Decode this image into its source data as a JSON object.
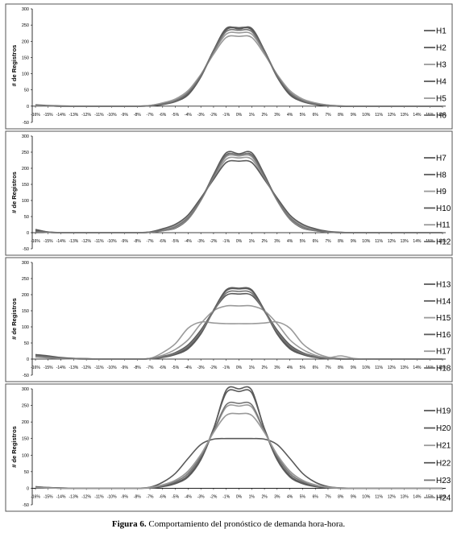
{
  "figure_caption": {
    "label": "Figura 6.",
    "text": "Comportamiento del pronóstico de  demanda  hora-hora."
  },
  "colors": {
    "dark": "#5a5a5a",
    "mid": "#757575",
    "light": "#9a9a9a",
    "axis": "#000000",
    "frame": "#555555"
  },
  "chart_data": [
    {
      "type": "line",
      "ylabel": "# de Registros",
      "ylim": [
        -50,
        300
      ],
      "yticks": [
        -50,
        0,
        50,
        100,
        150,
        200,
        250,
        300
      ],
      "categories": [
        "-16%",
        "-15%",
        "-14%",
        "-13%",
        "-12%",
        "-11%",
        "-10%",
        "-9%",
        "-8%",
        "-7%",
        "-6%",
        "-5%",
        "-4%",
        "-3%",
        "-2%",
        "-1%",
        "0%",
        "1%",
        "2%",
        "3%",
        "4%",
        "5%",
        "6%",
        "7%",
        "8%",
        "9%",
        "10%",
        "11%",
        "12%",
        "13%",
        "14%",
        "15%",
        "16%"
      ],
      "series": [
        {
          "name": "H1",
          "color": "dark",
          "values": [
            3,
            1,
            0,
            0,
            0,
            0,
            0,
            0,
            0,
            1,
            8,
            18,
            40,
            95,
            170,
            235,
            240,
            235,
            170,
            95,
            40,
            18,
            8,
            2,
            0,
            0,
            0,
            0,
            0,
            0,
            0,
            0,
            0
          ]
        },
        {
          "name": "H2",
          "color": "dark",
          "values": [
            4,
            2,
            1,
            0,
            0,
            0,
            0,
            0,
            0,
            1,
            6,
            15,
            38,
            92,
            172,
            240,
            238,
            240,
            172,
            92,
            38,
            15,
            6,
            2,
            0,
            0,
            0,
            0,
            0,
            0,
            0,
            0,
            0
          ]
        },
        {
          "name": "H3",
          "color": "light",
          "values": [
            2,
            1,
            0,
            0,
            0,
            0,
            0,
            0,
            0,
            2,
            10,
            22,
            48,
            98,
            160,
            212,
            215,
            212,
            160,
            98,
            48,
            22,
            10,
            3,
            1,
            0,
            0,
            0,
            0,
            0,
            0,
            0,
            0
          ]
        },
        {
          "name": "H4",
          "color": "dark",
          "values": [
            3,
            1,
            0,
            0,
            0,
            0,
            0,
            0,
            0,
            1,
            5,
            14,
            35,
            90,
            170,
            236,
            242,
            236,
            170,
            90,
            35,
            14,
            5,
            1,
            0,
            0,
            0,
            0,
            0,
            0,
            0,
            0,
            0
          ]
        },
        {
          "name": "H5",
          "color": "light",
          "values": [
            2,
            1,
            0,
            0,
            0,
            0,
            0,
            0,
            0,
            2,
            9,
            20,
            45,
            96,
            165,
            222,
            226,
            222,
            165,
            96,
            45,
            20,
            9,
            3,
            1,
            0,
            0,
            0,
            0,
            0,
            0,
            0,
            0
          ]
        },
        {
          "name": "H6",
          "color": "mid",
          "values": [
            3,
            1,
            0,
            0,
            0,
            0,
            0,
            0,
            0,
            1,
            7,
            17,
            42,
            94,
            168,
            230,
            234,
            230,
            168,
            94,
            42,
            17,
            7,
            2,
            0,
            0,
            0,
            0,
            0,
            0,
            0,
            0,
            0
          ]
        }
      ]
    },
    {
      "type": "line",
      "ylabel": "# de Registros",
      "ylim": [
        -50,
        300
      ],
      "yticks": [
        -50,
        0,
        50,
        100,
        150,
        200,
        250,
        300
      ],
      "categories": [
        "-16%",
        "-15%",
        "-14%",
        "-13%",
        "-12%",
        "-11%",
        "-10%",
        "-9%",
        "-8%",
        "-7%",
        "-6%",
        "-5%",
        "-4%",
        "-3%",
        "-2%",
        "-1%",
        "0%",
        "1%",
        "2%",
        "3%",
        "4%",
        "5%",
        "6%",
        "7%",
        "8%",
        "9%",
        "10%",
        "11%",
        "12%",
        "13%",
        "14%",
        "15%",
        "16%"
      ],
      "series": [
        {
          "name": "H7",
          "color": "dark",
          "values": [
            10,
            2,
            0,
            0,
            0,
            0,
            0,
            0,
            0,
            1,
            6,
            14,
            42,
            100,
            180,
            248,
            245,
            248,
            180,
            100,
            42,
            14,
            6,
            2,
            0,
            0,
            0,
            0,
            0,
            0,
            0,
            0,
            0
          ]
        },
        {
          "name": "H8",
          "color": "dark",
          "values": [
            8,
            2,
            0,
            0,
            0,
            0,
            0,
            0,
            0,
            1,
            8,
            18,
            48,
            104,
            176,
            242,
            240,
            242,
            176,
            104,
            48,
            18,
            8,
            2,
            0,
            0,
            0,
            0,
            0,
            0,
            0,
            0,
            0
          ]
        },
        {
          "name": "H9",
          "color": "light",
          "values": [
            4,
            1,
            0,
            0,
            0,
            0,
            0,
            0,
            0,
            2,
            10,
            22,
            52,
            106,
            168,
            228,
            232,
            228,
            168,
            106,
            52,
            22,
            10,
            3,
            1,
            0,
            0,
            0,
            0,
            0,
            0,
            0,
            0
          ]
        },
        {
          "name": "H10",
          "color": "dark",
          "values": [
            5,
            1,
            0,
            0,
            0,
            0,
            0,
            0,
            0,
            2,
            12,
            26,
            55,
            108,
            165,
            218,
            222,
            218,
            165,
            108,
            55,
            26,
            12,
            4,
            1,
            0,
            0,
            0,
            0,
            0,
            0,
            0,
            0
          ]
        },
        {
          "name": "H11",
          "color": "light",
          "values": [
            3,
            1,
            0,
            0,
            0,
            0,
            0,
            0,
            0,
            1,
            6,
            16,
            44,
            100,
            172,
            236,
            238,
            236,
            172,
            100,
            44,
            16,
            6,
            2,
            0,
            0,
            0,
            0,
            0,
            0,
            0,
            0,
            0
          ]
        },
        {
          "name": "H12",
          "color": "mid",
          "values": [
            4,
            1,
            0,
            0,
            0,
            0,
            0,
            0,
            0,
            1,
            7,
            18,
            46,
            102,
            174,
            240,
            242,
            240,
            174,
            102,
            46,
            18,
            7,
            2,
            0,
            0,
            0,
            0,
            0,
            0,
            0,
            0,
            0
          ]
        }
      ]
    },
    {
      "type": "line",
      "ylabel": "# de Registros",
      "ylim": [
        -50,
        300
      ],
      "yticks": [
        -50,
        0,
        50,
        100,
        150,
        200,
        250,
        300
      ],
      "categories": [
        "-16%",
        "-15%",
        "-14%",
        "-13%",
        "-12%",
        "-11%",
        "-10%",
        "-9%",
        "-8%",
        "-7%",
        "-6%",
        "-5%",
        "-4%",
        "-3%",
        "-2%",
        "-1%",
        "0%",
        "1%",
        "2%",
        "3%",
        "4%",
        "5%",
        "6%",
        "7%",
        "8%",
        "9%",
        "10%",
        "11%",
        "12%",
        "13%",
        "14%",
        "15%",
        "16%"
      ],
      "series": [
        {
          "name": "H13",
          "color": "dark",
          "values": [
            12,
            8,
            4,
            2,
            1,
            0,
            0,
            0,
            0,
            1,
            5,
            14,
            32,
            78,
            150,
            212,
            218,
            212,
            150,
            78,
            32,
            14,
            5,
            2,
            0,
            0,
            0,
            0,
            0,
            0,
            0,
            0,
            0
          ]
        },
        {
          "name": "H14",
          "color": "dark",
          "values": [
            10,
            6,
            3,
            1,
            0,
            0,
            0,
            0,
            0,
            1,
            8,
            20,
            44,
            90,
            150,
            198,
            202,
            198,
            150,
            90,
            44,
            20,
            8,
            2,
            0,
            0,
            0,
            0,
            0,
            0,
            0,
            0,
            0
          ]
        },
        {
          "name": "H15",
          "color": "light",
          "values": [
            6,
            4,
            2,
            1,
            0,
            0,
            0,
            0,
            0,
            2,
            20,
            48,
            96,
            115,
            112,
            110,
            110,
            110,
            112,
            115,
            96,
            48,
            20,
            6,
            2,
            0,
            0,
            0,
            0,
            0,
            0,
            0,
            0
          ]
        },
        {
          "name": "H16",
          "color": "dark",
          "values": [
            14,
            10,
            5,
            2,
            1,
            0,
            0,
            0,
            0,
            1,
            6,
            16,
            36,
            82,
            152,
            215,
            220,
            215,
            152,
            82,
            36,
            16,
            6,
            2,
            0,
            0,
            0,
            0,
            0,
            0,
            0,
            0,
            0
          ]
        },
        {
          "name": "H17",
          "color": "light",
          "values": [
            8,
            5,
            2,
            1,
            0,
            0,
            0,
            0,
            0,
            2,
            12,
            30,
            60,
            110,
            150,
            165,
            165,
            165,
            150,
            110,
            60,
            30,
            12,
            4,
            10,
            2,
            0,
            0,
            0,
            0,
            0,
            0,
            0
          ]
        },
        {
          "name": "H18",
          "color": "mid",
          "values": [
            10,
            6,
            3,
            1,
            0,
            0,
            0,
            0,
            0,
            1,
            7,
            18,
            40,
            85,
            148,
            205,
            210,
            205,
            148,
            85,
            40,
            18,
            7,
            2,
            0,
            0,
            0,
            0,
            0,
            0,
            0,
            0,
            0
          ]
        }
      ]
    },
    {
      "type": "line",
      "ylabel": "# de Registros",
      "ylim": [
        -50,
        300
      ],
      "yticks": [
        -50,
        0,
        50,
        100,
        150,
        200,
        250,
        300
      ],
      "categories": [
        "-16%",
        "-15%",
        "-14%",
        "-13%",
        "-12%",
        "-11%",
        "-10%",
        "-9%",
        "-8%",
        "-7%",
        "-6%",
        "-5%",
        "-4%",
        "-3%",
        "-2%",
        "-1%",
        "0%",
        "1%",
        "2%",
        "3%",
        "4%",
        "5%",
        "6%",
        "7%",
        "8%",
        "9%",
        "10%",
        "11%",
        "12%",
        "13%",
        "14%",
        "15%",
        "16%"
      ],
      "series": [
        {
          "name": "H19",
          "color": "dark",
          "values": [
            5,
            2,
            1,
            0,
            0,
            0,
            0,
            0,
            0,
            1,
            5,
            14,
            34,
            86,
            178,
            296,
            300,
            296,
            178,
            86,
            34,
            14,
            5,
            2,
            0,
            0,
            0,
            0,
            0,
            0,
            0,
            0,
            0
          ]
        },
        {
          "name": "H20",
          "color": "dark",
          "values": [
            4,
            2,
            1,
            0,
            0,
            0,
            0,
            0,
            0,
            1,
            6,
            16,
            38,
            90,
            180,
            288,
            292,
            288,
            180,
            90,
            38,
            16,
            6,
            2,
            0,
            0,
            0,
            0,
            0,
            0,
            0,
            0,
            0
          ]
        },
        {
          "name": "H21",
          "color": "light",
          "values": [
            3,
            1,
            0,
            0,
            0,
            0,
            0,
            0,
            0,
            2,
            10,
            24,
            50,
            100,
            170,
            245,
            248,
            245,
            170,
            100,
            50,
            24,
            10,
            3,
            1,
            0,
            0,
            0,
            0,
            0,
            0,
            0,
            0
          ]
        },
        {
          "name": "H22",
          "color": "dark",
          "values": [
            3,
            1,
            0,
            0,
            0,
            0,
            0,
            0,
            0,
            3,
            18,
            45,
            90,
            132,
            148,
            150,
            150,
            150,
            148,
            132,
            90,
            45,
            18,
            5,
            1,
            0,
            0,
            0,
            0,
            0,
            0,
            0,
            0
          ]
        },
        {
          "name": "H23",
          "color": "mid",
          "values": [
            3,
            1,
            0,
            0,
            0,
            0,
            0,
            0,
            0,
            1,
            8,
            20,
            44,
            96,
            172,
            252,
            256,
            252,
            172,
            96,
            44,
            20,
            8,
            2,
            0,
            0,
            0,
            0,
            0,
            0,
            0,
            0,
            0
          ]
        },
        {
          "name": "H24",
          "color": "light",
          "values": [
            2,
            1,
            0,
            0,
            0,
            0,
            0,
            0,
            0,
            2,
            10,
            24,
            52,
            102,
            168,
            220,
            225,
            220,
            168,
            102,
            52,
            24,
            10,
            3,
            1,
            0,
            0,
            0,
            0,
            0,
            0,
            0,
            0
          ]
        }
      ]
    }
  ]
}
